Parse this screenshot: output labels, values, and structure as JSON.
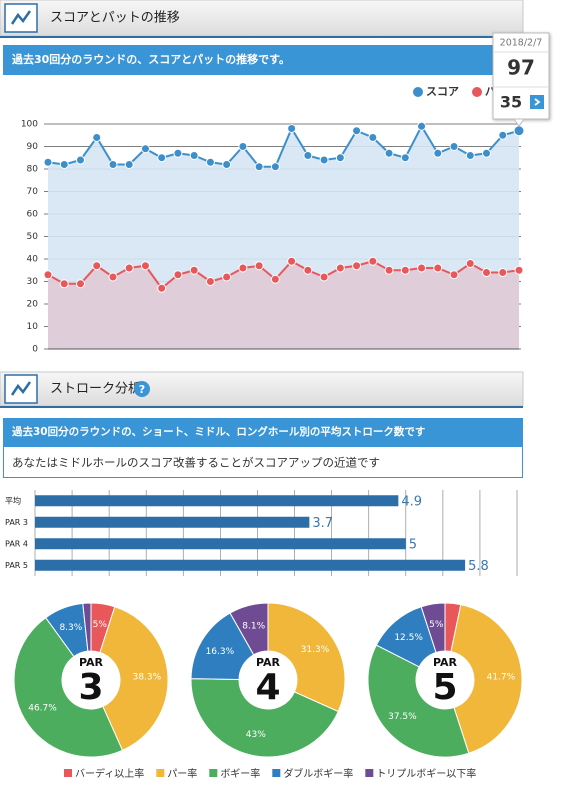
{
  "sections": [
    {
      "heading": "スコアとパットの推移",
      "description": "過去30回分のラウンドの、スコアとパットの推移です。"
    },
    {
      "heading": "ストローク分析",
      "description": "過去30回分のラウンドの、ショート、ミドル、ロングホール別の平均ストローク数です",
      "message": "あなたはミドルホールのスコア改善することがスコアアップの近道です"
    }
  ],
  "chart_data": [
    {
      "type": "line",
      "categories": [
        null,
        null,
        null,
        null,
        null,
        null,
        null,
        null,
        null,
        null,
        null,
        null,
        null,
        null,
        null,
        null,
        null,
        null,
        null,
        null,
        null,
        null,
        null,
        null,
        null,
        null,
        null,
        null,
        null,
        null
      ],
      "series": [
        {
          "name": "スコア",
          "color": "#3d8fcb",
          "fill": "#d5e6f3",
          "values": [
            83,
            82,
            84,
            94,
            82,
            82,
            89,
            85,
            87,
            86,
            83,
            82,
            90,
            81,
            81,
            98,
            86,
            84,
            85,
            97,
            94,
            87,
            85,
            99,
            87,
            90,
            86,
            87,
            95,
            97
          ]
        },
        {
          "name": "パット",
          "color": "#e8575a",
          "fill": "#dfcbd6",
          "values": [
            33,
            29,
            29,
            37,
            32,
            36,
            37,
            27,
            33,
            35,
            30,
            32,
            36,
            37,
            31,
            39,
            35,
            32,
            36,
            37,
            39,
            35,
            35,
            36,
            36,
            33,
            38,
            34,
            34,
            35
          ]
        }
      ],
      "ylim": [
        0,
        100
      ],
      "yticks": [
        0,
        10,
        20,
        30,
        40,
        50,
        60,
        70,
        80,
        90,
        100
      ],
      "grid": true,
      "area": true,
      "tooltip": {
        "title": "2018/2/7"
      }
    },
    {
      "type": "barh",
      "categories": [
        "平均",
        "PAR 3",
        "PAR 4",
        "PAR 5"
      ],
      "values": [
        4.9,
        3.7,
        5,
        5.8
      ],
      "color": "#2b6ea8",
      "label_color": "#3b78b0",
      "xlim": [
        0,
        6.5
      ],
      "xticks": [
        0,
        0.5,
        1,
        1.5,
        2,
        2.5,
        3,
        3.5,
        4,
        4.5,
        5,
        5.5,
        6,
        6.5
      ],
      "grid": true
    },
    {
      "type": "donut",
      "title": "PAR",
      "number": "3",
      "categories": [
        "バーディ以上率",
        "パー率",
        "ボギー率",
        "ダブルボギー率",
        "トリプルボギー以下率"
      ],
      "colors": [
        "#e8575a",
        "#f0b73a",
        "#4cad5e",
        "#2f7fc0",
        "#6f4b94"
      ],
      "values": [
        5,
        38.3,
        46.7,
        8.3,
        1.7
      ],
      "value_labels": [
        "5%",
        "38.3%",
        "46.7%",
        "8.3%",
        null
      ]
    },
    {
      "type": "donut",
      "title": "PAR",
      "number": "4",
      "categories": [
        "バーディ以上率",
        "パー率",
        "ボギー率",
        "ダブルボギー率",
        "トリプルボギー以下率"
      ],
      "colors": [
        "#e8575a",
        "#f0b73a",
        "#4cad5e",
        "#2f7fc0",
        "#6f4b94"
      ],
      "values": [
        0,
        31.3,
        43,
        16.3,
        8.1
      ],
      "value_labels": [
        null,
        "31.3%",
        "43%",
        "16.3%",
        "8.1%"
      ]
    },
    {
      "type": "donut",
      "title": "PAR",
      "number": "5",
      "categories": [
        "バーディ以上率",
        "パー率",
        "ボギー率",
        "ダブルボギー率",
        "トリプルボギー以下率"
      ],
      "colors": [
        "#e8575a",
        "#f0b73a",
        "#4cad5e",
        "#2f7fc0",
        "#6f4b94"
      ],
      "values": [
        3.3,
        41.7,
        37.5,
        12.5,
        5
      ],
      "value_labels": [
        null,
        "41.7%",
        "37.5%",
        "12.5%",
        "5%"
      ]
    }
  ]
}
